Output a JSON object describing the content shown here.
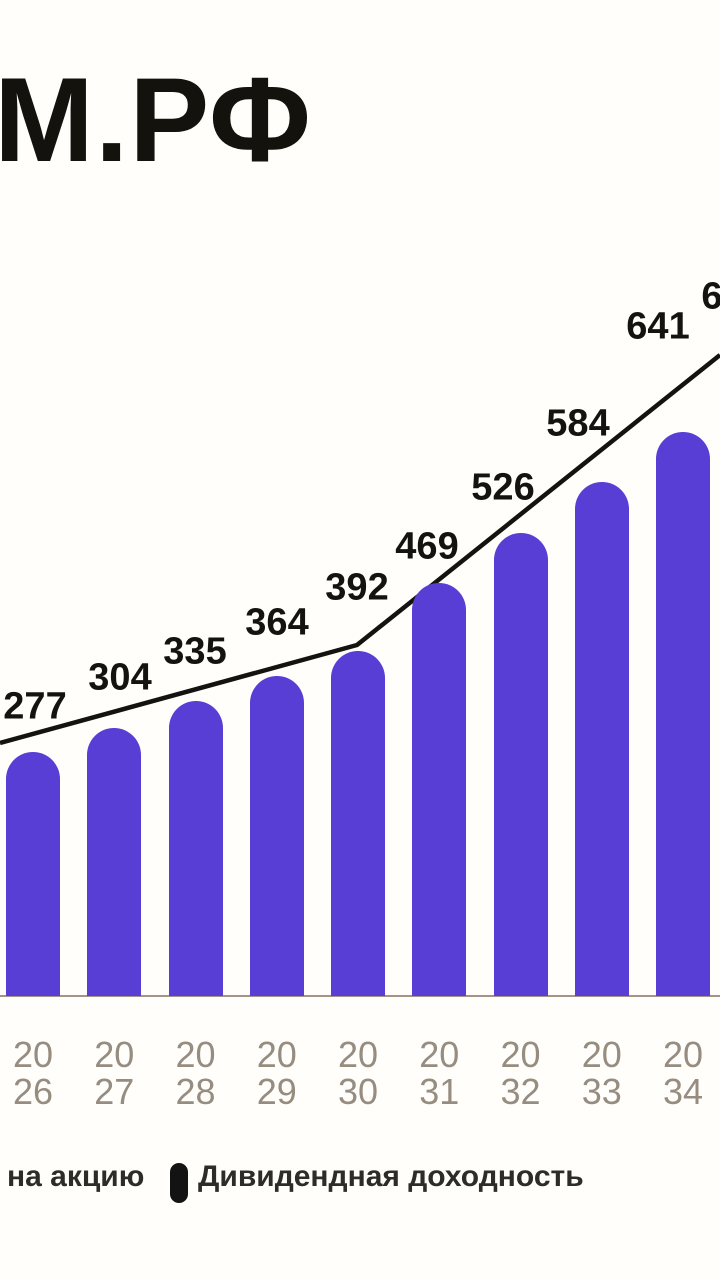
{
  "page": {
    "title": "М.РФ"
  },
  "chart_data": {
    "type": "bar",
    "title": "М.РФ",
    "categories": [
      "2026",
      "2027",
      "2028",
      "2029",
      "2030",
      "2031",
      "2032",
      "2033",
      "2034"
    ],
    "series": [
      {
        "name": "на акцию",
        "type": "bar",
        "values": [
          277,
          304,
          335,
          364,
          392,
          469,
          526,
          584,
          641
        ]
      },
      {
        "name": "Дивидендная доходность",
        "type": "line",
        "values_labeled": false,
        "shape": "rising polyline, gentle slope 2026-2030 then steeper through 2034, runs just above bar tops"
      }
    ],
    "value_labels": [
      "277",
      "304",
      "335",
      "364",
      "392",
      "469",
      "526",
      "584",
      "641"
    ],
    "next_value_partial": "6",
    "x_tick_style": "year wrapped on two lines (20 / 26)",
    "y_axis": "hidden",
    "grid": "off",
    "legend_position": "bottom",
    "colors": {
      "bar": "#593ED6",
      "line": "#15130E",
      "value_label": "#15130E",
      "x_tick": "#968C80",
      "axis_line": "#8F8273",
      "legend_marker": "#131313",
      "background": "#FFFEFB"
    }
  },
  "legend": {
    "items": [
      {
        "label": "на акцию",
        "marker_visible": false
      },
      {
        "label": "Дивидендная доходность",
        "marker": "pill",
        "marker_color": "#131313"
      }
    ]
  }
}
